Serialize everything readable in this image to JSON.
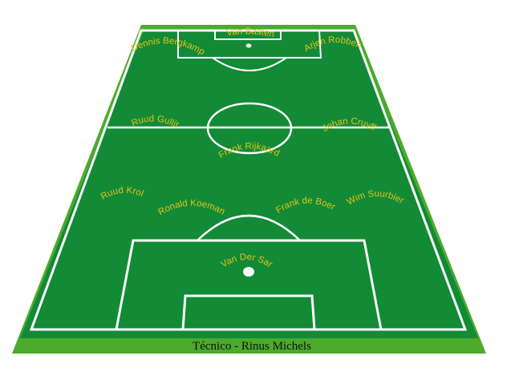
{
  "colors": {
    "border_green": "#4caa2c",
    "field_green": "#128a36",
    "line_white": "#ffffff",
    "label_yellow": "#e6c21a",
    "caption_text": "#111111"
  },
  "players": [
    {
      "name": "Van Basten"
    },
    {
      "name": "Dennis Bergkamp"
    },
    {
      "name": "Arjen Robben"
    },
    {
      "name": "Ruud Gullit"
    },
    {
      "name": "Johan Cruyff"
    },
    {
      "name": "Frank Rijkaard"
    },
    {
      "name": "Ruud Krol"
    },
    {
      "name": "Ronald Koeman"
    },
    {
      "name": "Frank de Boer"
    },
    {
      "name": "Wim Suurbier"
    },
    {
      "name": "Van Der Sar"
    }
  ],
  "coach_caption": "Técnico - Rinus Michels"
}
